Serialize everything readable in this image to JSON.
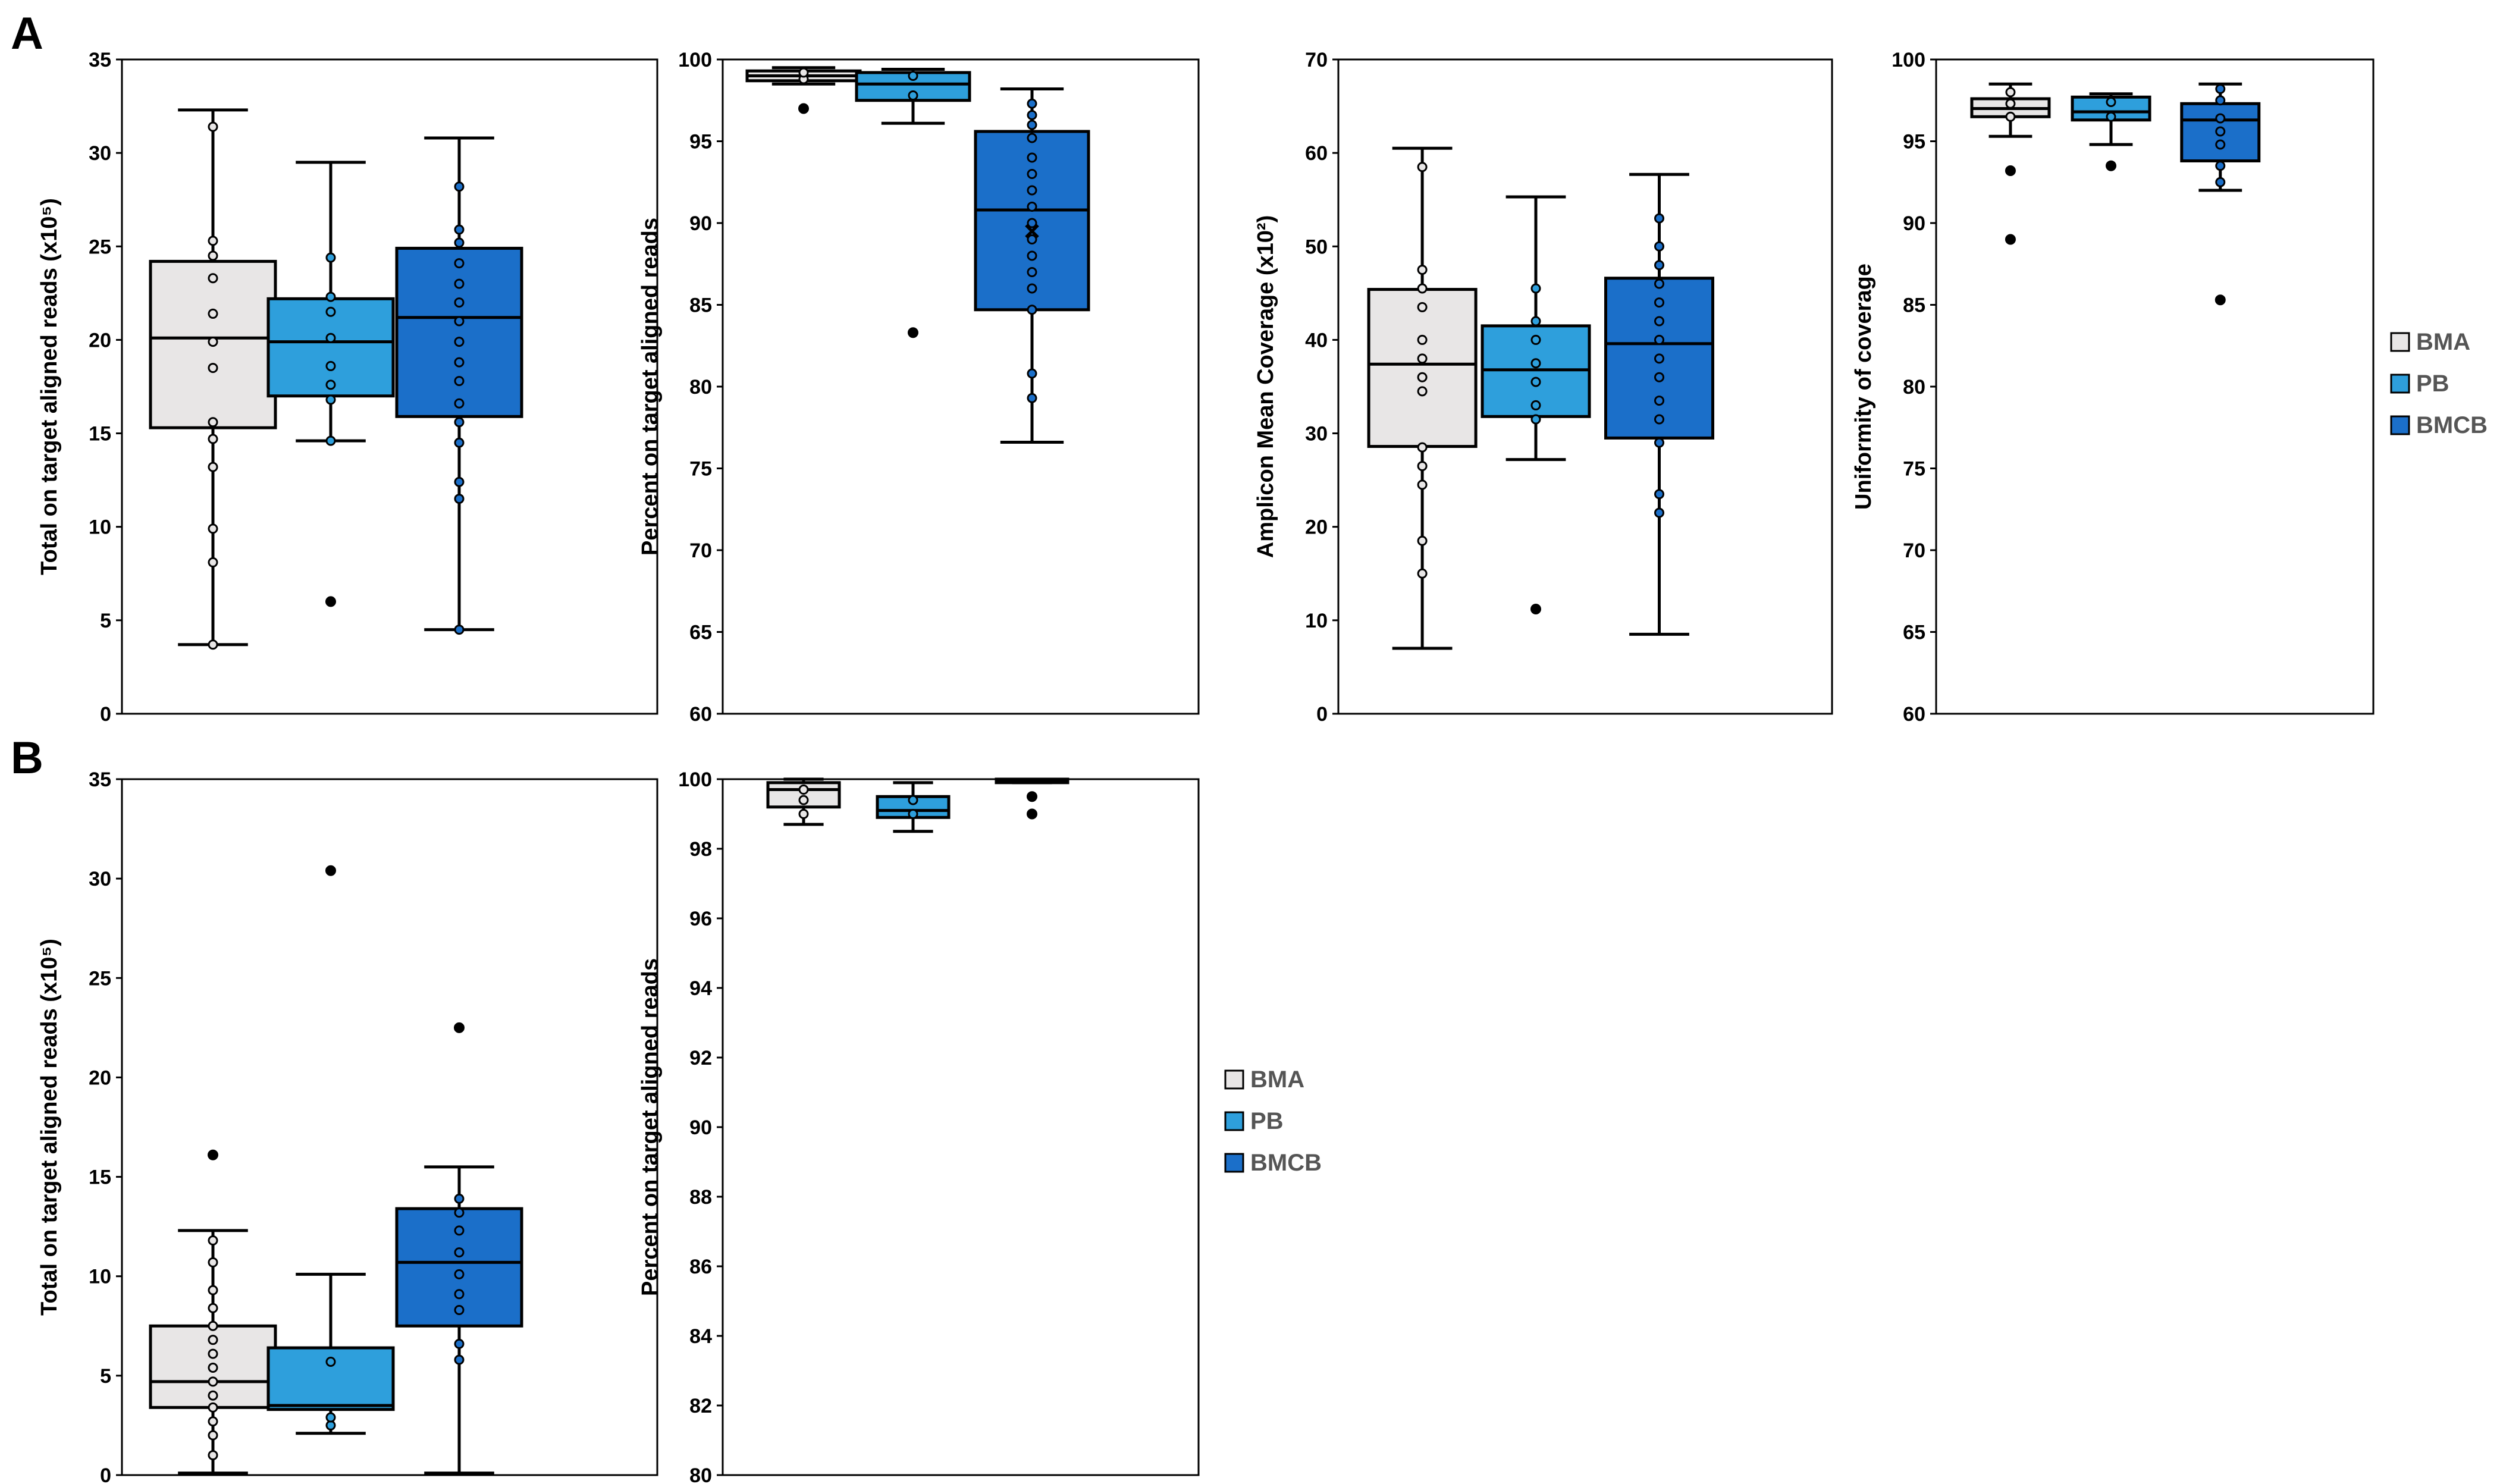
{
  "panels": [
    {
      "label": "A"
    },
    {
      "label": "B"
    }
  ],
  "colors": {
    "BMA": "#e8e6e6",
    "PB": "#2e9fdc",
    "BMCB": "#1b6fc9",
    "stroke": "#000000"
  },
  "legends": [
    {
      "panel": "A",
      "items": [
        "BMA",
        "PB",
        "BMCB"
      ]
    },
    {
      "panel": "B",
      "items": [
        "BMA",
        "PB",
        "BMCB"
      ]
    }
  ],
  "chart_data": [
    {
      "type": "box",
      "panel": "A",
      "ylabel": "Total on target aligned reads (x10⁵)",
      "ylim": [
        0,
        35
      ],
      "yticks": [
        0,
        5,
        10,
        15,
        20,
        25,
        30,
        35
      ],
      "series": [
        {
          "name": "BMA",
          "whisker_low": 3.7,
          "q1": 15.3,
          "median": 20.1,
          "q3": 24.2,
          "whisker_high": 32.3,
          "mean": null,
          "points": [
            3.7,
            8.1,
            9.9,
            13.2,
            14.7,
            15.6,
            18.5,
            19.9,
            21.4,
            23.3,
            24.5,
            25.3,
            31.4
          ],
          "outliers": []
        },
        {
          "name": "PB",
          "whisker_low": 14.6,
          "q1": 17.0,
          "median": 19.9,
          "q3": 22.2,
          "whisker_high": 29.5,
          "mean": null,
          "points": [
            14.6,
            16.8,
            17.6,
            18.6,
            20.1,
            21.5,
            22.3,
            24.4
          ],
          "outliers": [
            6.0
          ]
        },
        {
          "name": "BMCB",
          "whisker_low": 4.5,
          "q1": 15.9,
          "median": 21.2,
          "q3": 24.9,
          "whisker_high": 30.8,
          "mean": null,
          "points": [
            4.5,
            11.5,
            12.4,
            14.5,
            15.6,
            16.6,
            17.8,
            18.8,
            19.9,
            21.0,
            22.0,
            23.0,
            24.1,
            25.2,
            25.9,
            28.2
          ],
          "outliers": []
        }
      ]
    },
    {
      "type": "box",
      "panel": "A",
      "ylabel": "Percent on target aligned reads",
      "ylim": [
        60,
        100
      ],
      "yticks": [
        60,
        65,
        70,
        75,
        80,
        85,
        90,
        95,
        100
      ],
      "series": [
        {
          "name": "BMA",
          "whisker_low": 98.5,
          "q1": 98.7,
          "median": 99.0,
          "q3": 99.3,
          "whisker_high": 99.5,
          "mean": null,
          "points": [
            98.8,
            99.2
          ],
          "outliers": [
            97.0
          ]
        },
        {
          "name": "PB",
          "whisker_low": 96.1,
          "q1": 97.5,
          "median": 98.5,
          "q3": 99.2,
          "whisker_high": 99.4,
          "mean": null,
          "points": [
            97.8,
            99.0
          ],
          "outliers": [
            83.3
          ]
        },
        {
          "name": "BMCB",
          "whisker_low": 76.6,
          "q1": 84.7,
          "median": 90.8,
          "q3": 95.6,
          "whisker_high": 98.2,
          "mean": 89.5,
          "points": [
            79.3,
            80.8,
            84.7,
            86.0,
            87.0,
            88.0,
            89.0,
            90.0,
            91.0,
            92.0,
            93.0,
            94.0,
            95.2,
            96.0,
            96.6,
            97.3
          ],
          "outliers": []
        }
      ]
    },
    {
      "type": "box",
      "panel": "A",
      "ylabel": "Amplicon Mean Coverage (x10²)",
      "ylim": [
        0,
        70
      ],
      "yticks": [
        0,
        10,
        20,
        30,
        40,
        50,
        60,
        70
      ],
      "series": [
        {
          "name": "BMA",
          "whisker_low": 7.0,
          "q1": 28.6,
          "median": 37.4,
          "q3": 45.4,
          "whisker_high": 60.5,
          "mean": null,
          "points": [
            15.0,
            18.5,
            24.5,
            26.5,
            28.5,
            34.5,
            36.0,
            38.0,
            40.0,
            43.5,
            45.5,
            47.5,
            58.5
          ],
          "outliers": []
        },
        {
          "name": "PB",
          "whisker_low": 27.2,
          "q1": 31.8,
          "median": 36.8,
          "q3": 41.5,
          "whisker_high": 55.3,
          "mean": null,
          "points": [
            31.5,
            33.0,
            35.5,
            37.5,
            40.0,
            42.0,
            45.5
          ],
          "outliers": [
            11.2
          ]
        },
        {
          "name": "BMCB",
          "whisker_low": 8.5,
          "q1": 29.5,
          "median": 39.6,
          "q3": 46.6,
          "whisker_high": 57.7,
          "mean": null,
          "points": [
            21.5,
            23.5,
            29.0,
            31.5,
            33.5,
            36.0,
            38.0,
            40.0,
            42.0,
            44.0,
            46.0,
            48.0,
            50.0,
            53.0
          ],
          "outliers": []
        }
      ]
    },
    {
      "type": "box",
      "panel": "A",
      "ylabel": "Uniformity of coverage",
      "ylim": [
        60,
        100
      ],
      "yticks": [
        60,
        65,
        70,
        75,
        80,
        85,
        90,
        95,
        100
      ],
      "series": [
        {
          "name": "BMA",
          "whisker_low": 95.3,
          "q1": 96.5,
          "median": 97.0,
          "q3": 97.6,
          "whisker_high": 98.5,
          "mean": null,
          "points": [
            96.5,
            97.3,
            98.0
          ],
          "outliers": [
            93.2,
            89.0
          ]
        },
        {
          "name": "PB",
          "whisker_low": 94.8,
          "q1": 96.3,
          "median": 96.8,
          "q3": 97.7,
          "whisker_high": 97.9,
          "mean": null,
          "points": [
            96.5,
            97.4
          ],
          "outliers": [
            93.5
          ]
        },
        {
          "name": "BMCB",
          "whisker_low": 92.0,
          "q1": 93.8,
          "median": 96.3,
          "q3": 97.3,
          "whisker_high": 98.5,
          "mean": null,
          "points": [
            92.5,
            93.5,
            94.8,
            95.6,
            96.4,
            97.5,
            98.2
          ],
          "outliers": [
            85.3
          ]
        }
      ]
    },
    {
      "type": "box",
      "panel": "B",
      "ylabel": "Total on target aligned reads (x10⁵)",
      "ylim": [
        0,
        35
      ],
      "yticks": [
        0,
        5,
        10,
        15,
        20,
        25,
        30,
        35
      ],
      "series": [
        {
          "name": "BMA",
          "whisker_low": 0.1,
          "q1": 3.4,
          "median": 4.7,
          "q3": 7.5,
          "whisker_high": 12.3,
          "mean": null,
          "points": [
            1.0,
            2.0,
            2.7,
            3.4,
            4.0,
            4.7,
            5.4,
            6.1,
            6.8,
            7.5,
            8.4,
            9.3,
            10.7,
            11.8
          ],
          "outliers": [
            16.1
          ]
        },
        {
          "name": "PB",
          "whisker_low": 2.1,
          "q1": 3.3,
          "median": 3.5,
          "q3": 6.4,
          "whisker_high": 10.1,
          "mean": null,
          "points": [
            2.5,
            2.9,
            5.7
          ],
          "outliers": [
            30.4
          ]
        },
        {
          "name": "BMCB",
          "whisker_low": 0.1,
          "q1": 7.5,
          "median": 10.7,
          "q3": 13.4,
          "whisker_high": 15.5,
          "mean": null,
          "points": [
            5.8,
            6.6,
            8.3,
            9.1,
            10.1,
            11.2,
            12.3,
            13.2,
            13.9
          ],
          "outliers": [
            22.5
          ]
        }
      ]
    },
    {
      "type": "box",
      "panel": "B",
      "ylabel": "Percent on target aligned reads",
      "ylim": [
        80,
        100
      ],
      "yticks": [
        80,
        82,
        84,
        86,
        88,
        90,
        92,
        94,
        96,
        98,
        100
      ],
      "series": [
        {
          "name": "BMA",
          "whisker_low": 98.7,
          "q1": 99.2,
          "median": 99.7,
          "q3": 99.9,
          "whisker_high": 100.0,
          "mean": null,
          "points": [
            99.0,
            99.4,
            99.7
          ],
          "outliers": []
        },
        {
          "name": "PB",
          "whisker_low": 98.5,
          "q1": 98.9,
          "median": 99.1,
          "q3": 99.5,
          "whisker_high": 99.9,
          "mean": null,
          "points": [
            99.0,
            99.4
          ],
          "outliers": []
        },
        {
          "name": "BMCB",
          "whisker_low": 99.9,
          "q1": 99.9,
          "median": 99.95,
          "q3": 100.0,
          "whisker_high": 100.0,
          "mean": null,
          "points": [],
          "outliers": [
            99.5,
            99.0
          ]
        }
      ]
    }
  ]
}
